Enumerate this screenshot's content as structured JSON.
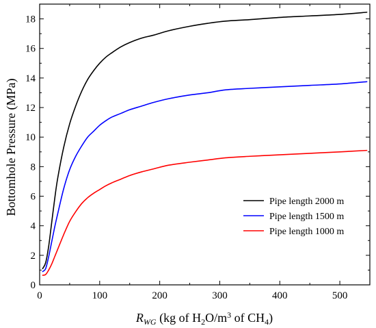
{
  "chart_data": {
    "type": "line",
    "xlabel": {
      "main": "R",
      "sub": "WG",
      "rest1": " (kg of H",
      "sub2": "2",
      "rest2": "O/m",
      "sup": "3",
      "rest3": " of CH",
      "sub3": "4",
      "rest4": ")"
    },
    "ylabel": "Bottomhole Pressure (MPa)",
    "xlim": [
      0,
      550
    ],
    "ylim": [
      0,
      19
    ],
    "xticks": [
      0,
      100,
      200,
      300,
      400,
      500
    ],
    "yticks": [
      0,
      2,
      4,
      6,
      8,
      10,
      12,
      14,
      16,
      18
    ],
    "grid": false,
    "legend_position": "lower-right",
    "series": [
      {
        "name": "Pipe length 2000 m",
        "color": "#000000",
        "x": [
          5,
          10,
          15,
          20,
          25,
          30,
          40,
          50,
          60,
          70,
          80,
          90,
          100,
          110,
          120,
          135,
          150,
          170,
          190,
          215,
          250,
          280,
          310,
          350,
          400,
          450,
          500,
          545
        ],
        "y": [
          1.1,
          1.5,
          2.6,
          4.2,
          5.8,
          7.2,
          9.3,
          10.9,
          12.1,
          13.1,
          13.9,
          14.5,
          15.0,
          15.4,
          15.7,
          16.1,
          16.4,
          16.7,
          16.9,
          17.2,
          17.5,
          17.7,
          17.85,
          17.95,
          18.1,
          18.2,
          18.3,
          18.45
        ]
      },
      {
        "name": "Pipe length 1500 m",
        "color": "#0000ff",
        "x": [
          5,
          10,
          15,
          20,
          25,
          30,
          40,
          50,
          60,
          70,
          80,
          90,
          100,
          110,
          120,
          135,
          150,
          170,
          190,
          215,
          250,
          280,
          310,
          350,
          400,
          450,
          500,
          545
        ],
        "y": [
          0.9,
          1.1,
          1.9,
          2.9,
          3.9,
          4.8,
          6.5,
          7.8,
          8.7,
          9.4,
          10.0,
          10.4,
          10.8,
          11.1,
          11.35,
          11.6,
          11.85,
          12.1,
          12.35,
          12.6,
          12.85,
          13.0,
          13.2,
          13.3,
          13.4,
          13.5,
          13.6,
          13.75
        ]
      },
      {
        "name": "Pipe length 1000 m",
        "color": "#ff0000",
        "x": [
          5,
          10,
          15,
          20,
          25,
          30,
          40,
          50,
          60,
          70,
          80,
          90,
          100,
          110,
          120,
          135,
          150,
          170,
          190,
          215,
          250,
          280,
          310,
          350,
          400,
          450,
          500,
          545
        ],
        "y": [
          0.65,
          0.7,
          1.0,
          1.4,
          1.9,
          2.4,
          3.4,
          4.3,
          4.95,
          5.5,
          5.9,
          6.2,
          6.45,
          6.7,
          6.9,
          7.15,
          7.4,
          7.65,
          7.85,
          8.1,
          8.3,
          8.45,
          8.6,
          8.7,
          8.8,
          8.9,
          9.0,
          9.1
        ]
      }
    ]
  }
}
